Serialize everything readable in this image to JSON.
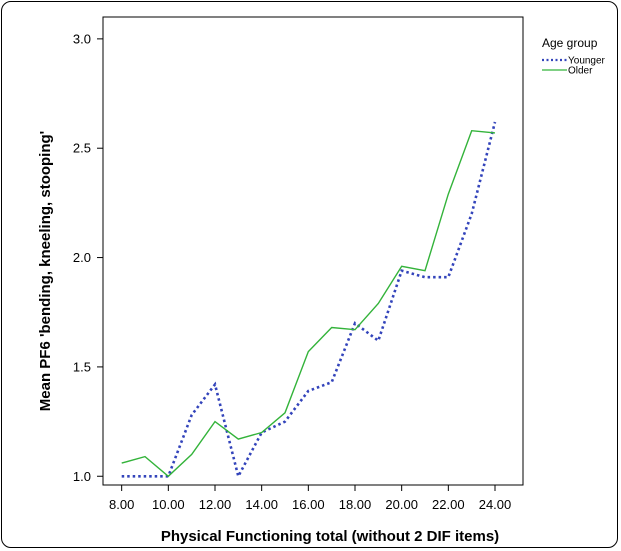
{
  "chart_data": {
    "type": "line",
    "xlabel": "Physical Functioning total (without 2 DIF items)",
    "ylabel": "Mean PF6 'bending, kneeling, stooping'",
    "x": [
      8,
      9,
      10,
      11,
      12,
      13,
      14,
      15,
      16,
      17,
      18,
      19,
      20,
      21,
      22,
      23,
      24
    ],
    "x_tick_labels": [
      "8.00",
      "10.00",
      "12.00",
      "14.00",
      "16.00",
      "18.00",
      "20.00",
      "22.00",
      "24.00"
    ],
    "y_tick_labels": [
      "1.0",
      "1.5",
      "2.0",
      "2.5",
      "3.0"
    ],
    "xlim": [
      7.2,
      25.2
    ],
    "ylim": [
      0.96,
      3.1
    ],
    "grid": false,
    "legend_title": "Age group",
    "legend_position": "top-right",
    "series": [
      {
        "name": "Younger",
        "style": "dotted",
        "color": "#3344bb",
        "values": [
          1.0,
          1.0,
          1.0,
          1.28,
          1.42,
          1.0,
          1.2,
          1.25,
          1.39,
          1.43,
          1.7,
          1.62,
          1.94,
          1.91,
          1.91,
          2.2,
          2.62
        ]
      },
      {
        "name": "Older",
        "style": "solid",
        "color": "#33b33a",
        "values": [
          1.06,
          1.09,
          1.0,
          1.1,
          1.25,
          1.17,
          1.2,
          1.29,
          1.57,
          1.68,
          1.67,
          1.79,
          1.96,
          1.94,
          2.29,
          2.58,
          2.57
        ]
      }
    ]
  }
}
